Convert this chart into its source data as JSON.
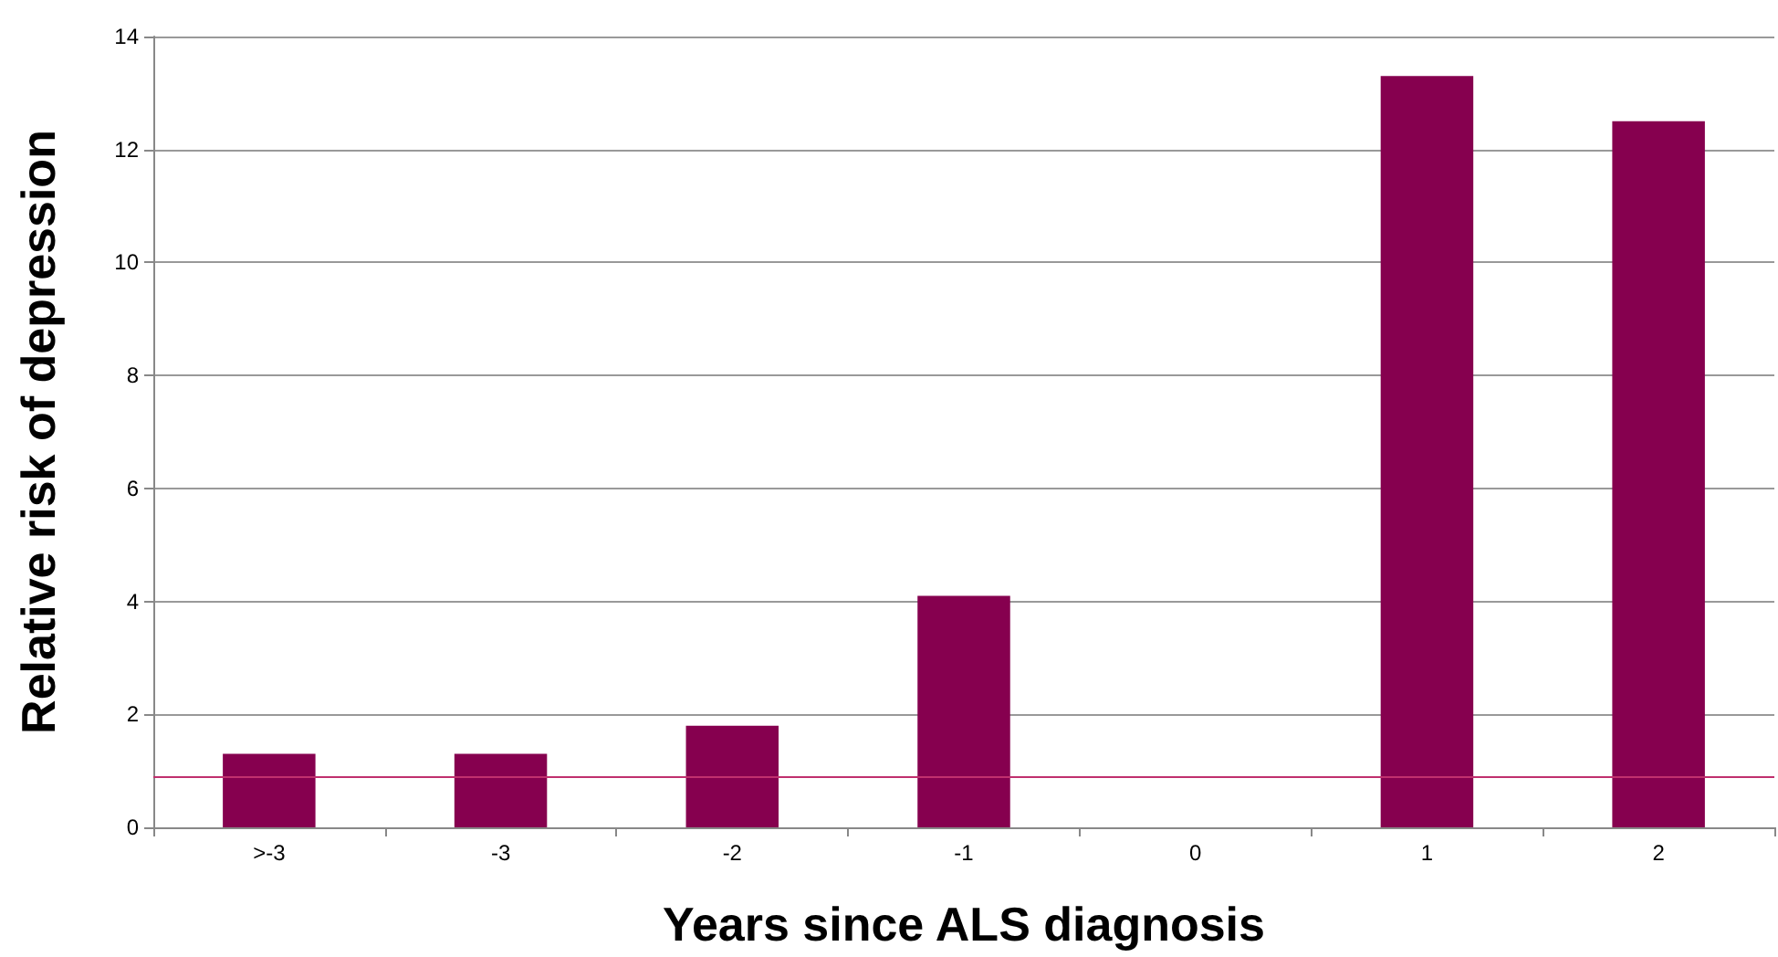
{
  "chart_data": {
    "type": "bar",
    "xlabel": "Years since ALS diagnosis",
    "ylabel": "Relative risk of depression",
    "categories": [
      ">-3",
      "-3",
      "-2",
      "-1",
      "0",
      "1",
      "2"
    ],
    "values": [
      1.3,
      1.3,
      1.8,
      4.1,
      null,
      13.3,
      12.5
    ],
    "color": "#86004f",
    "ylim": [
      0,
      14
    ],
    "yticks": [
      0,
      2,
      4,
      6,
      8,
      10,
      12,
      14
    ],
    "grid": "y",
    "ref_lines": [
      {
        "axis": "y",
        "value": 0.9,
        "color": "#c0306e"
      }
    ]
  }
}
